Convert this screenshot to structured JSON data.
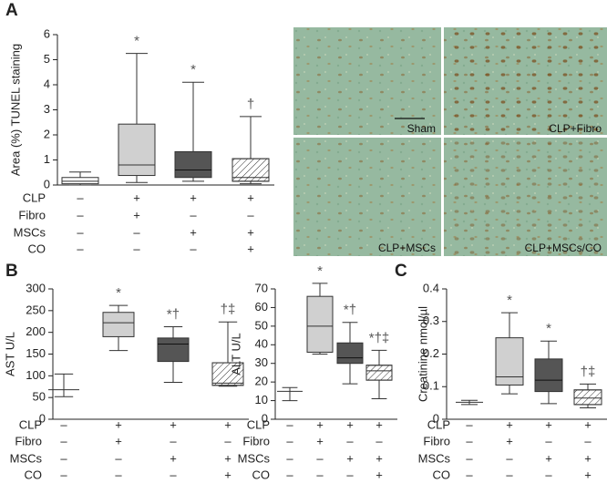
{
  "chart_data": [
    {
      "type": "box",
      "panel": "A",
      "ylabel": "Area (%) TUNEL staining",
      "ylim": [
        0,
        6
      ],
      "yticks": [
        0,
        1,
        2,
        3,
        4,
        5,
        6
      ],
      "boxes": [
        {
          "min": 0,
          "q1": 0.05,
          "median": 0.15,
          "q3": 0.3,
          "max": 0.52,
          "fill": "#ffffff"
        },
        {
          "min": 0.1,
          "q1": 0.38,
          "median": 0.8,
          "q3": 2.43,
          "max": 5.25,
          "fill": "#d0d0d0",
          "annotation": "*"
        },
        {
          "min": 0.15,
          "q1": 0.3,
          "median": 0.6,
          "q3": 1.33,
          "max": 4.1,
          "fill": "#555555",
          "annotation": "*"
        },
        {
          "min": 0.05,
          "q1": 0.15,
          "median": 0.3,
          "q3": 1.05,
          "max": 2.73,
          "fill": "#ffffff",
          "hatch": true,
          "annotation": "†"
        }
      ],
      "conditions": [
        {
          "name": "CLP",
          "values": [
            "–",
            "+",
            "+",
            "+"
          ]
        },
        {
          "name": "Fibro",
          "values": [
            "–",
            "+",
            "–",
            "–"
          ]
        },
        {
          "name": "MSCs",
          "values": [
            "–",
            "–",
            "+",
            "+"
          ]
        },
        {
          "name": "CO",
          "values": [
            "–",
            "–",
            "–",
            "+"
          ]
        }
      ]
    },
    {
      "type": "box",
      "panel": "B",
      "ylabel": "AST U/L",
      "ylim": [
        0,
        300
      ],
      "yticks": [
        0,
        50,
        100,
        150,
        200,
        250,
        300
      ],
      "boxes": [
        {
          "min": 52,
          "q1": 68,
          "median": 68,
          "q3": 68,
          "max": 104,
          "fill": "#ffffff"
        },
        {
          "min": 158,
          "q1": 190,
          "median": 222,
          "q3": 246,
          "max": 262,
          "fill": "#d0d0d0",
          "annotation": "*"
        },
        {
          "min": 85,
          "q1": 133,
          "median": 173,
          "q3": 187,
          "max": 213,
          "fill": "#555555",
          "annotation": "*†"
        },
        {
          "min": 76,
          "q1": 78,
          "median": 83,
          "q3": 130,
          "max": 224,
          "fill": "#ffffff",
          "hatch": true,
          "annotation": "†‡"
        }
      ],
      "conditions": [
        {
          "name": "CLP",
          "values": [
            "–",
            "+",
            "+",
            "+"
          ]
        },
        {
          "name": "Fibro",
          "values": [
            "–",
            "+",
            "–",
            "–"
          ]
        },
        {
          "name": "MSCs",
          "values": [
            "–",
            "–",
            "+",
            "+"
          ]
        },
        {
          "name": "CO",
          "values": [
            "–",
            "–",
            "–",
            "+"
          ]
        }
      ]
    },
    {
      "type": "box",
      "ylabel": "ALT U/L",
      "ylim": [
        0,
        70
      ],
      "yticks": [
        0,
        10,
        20,
        30,
        40,
        50,
        60,
        70
      ],
      "boxes": [
        {
          "min": 10,
          "q1": 15,
          "median": 15,
          "q3": 15,
          "max": 17,
          "fill": "#ffffff"
        },
        {
          "min": 35,
          "q1": 36,
          "median": 50,
          "q3": 66,
          "max": 73,
          "fill": "#d0d0d0",
          "annotation": "*"
        },
        {
          "min": 19,
          "q1": 30,
          "median": 33,
          "q3": 41,
          "max": 52,
          "fill": "#555555",
          "annotation": "*†"
        },
        {
          "min": 11,
          "q1": 21,
          "median": 26,
          "q3": 29,
          "max": 37,
          "fill": "#ffffff",
          "hatch": true,
          "annotation": "*†‡"
        }
      ],
      "conditions": [
        {
          "name": "CLP",
          "values": [
            "–",
            "+",
            "+",
            "+"
          ]
        },
        {
          "name": "Fibro",
          "values": [
            "–",
            "+",
            "–",
            "–"
          ]
        },
        {
          "name": "MSCs",
          "values": [
            "–",
            "–",
            "+",
            "+"
          ]
        },
        {
          "name": "CO",
          "values": [
            "–",
            "–",
            "–",
            "+"
          ]
        }
      ]
    },
    {
      "type": "box",
      "panel": "C",
      "ylabel": "Creatinine nmol/µl",
      "ylim": [
        0,
        0.4
      ],
      "yticks": [
        0,
        0.1,
        0.2,
        0.3,
        0.4
      ],
      "boxes": [
        {
          "min": 0.045,
          "q1": 0.052,
          "median": 0.052,
          "q3": 0.052,
          "max": 0.058,
          "fill": "#ffffff"
        },
        {
          "min": 0.078,
          "q1": 0.105,
          "median": 0.13,
          "q3": 0.25,
          "max": 0.327,
          "fill": "#d0d0d0",
          "annotation": "*"
        },
        {
          "min": 0.048,
          "q1": 0.085,
          "median": 0.12,
          "q3": 0.185,
          "max": 0.24,
          "fill": "#555555",
          "annotation": "*"
        },
        {
          "min": 0.035,
          "q1": 0.045,
          "median": 0.065,
          "q3": 0.09,
          "max": 0.108,
          "fill": "#ffffff",
          "hatch": true,
          "annotation": "†‡"
        }
      ],
      "conditions": [
        {
          "name": "CLP",
          "values": [
            "–",
            "+",
            "+",
            "+"
          ]
        },
        {
          "name": "Fibro",
          "values": [
            "–",
            "+",
            "–",
            "–"
          ]
        },
        {
          "name": "MSCs",
          "values": [
            "–",
            "–",
            "+",
            "+"
          ]
        },
        {
          "name": "CO",
          "values": [
            "–",
            "–",
            "–",
            "+"
          ]
        }
      ]
    }
  ],
  "micrographs": {
    "labels": [
      "Sham",
      "CLP+Fibro",
      "CLP+MSCs",
      "CLP+MSCs/CO"
    ]
  }
}
